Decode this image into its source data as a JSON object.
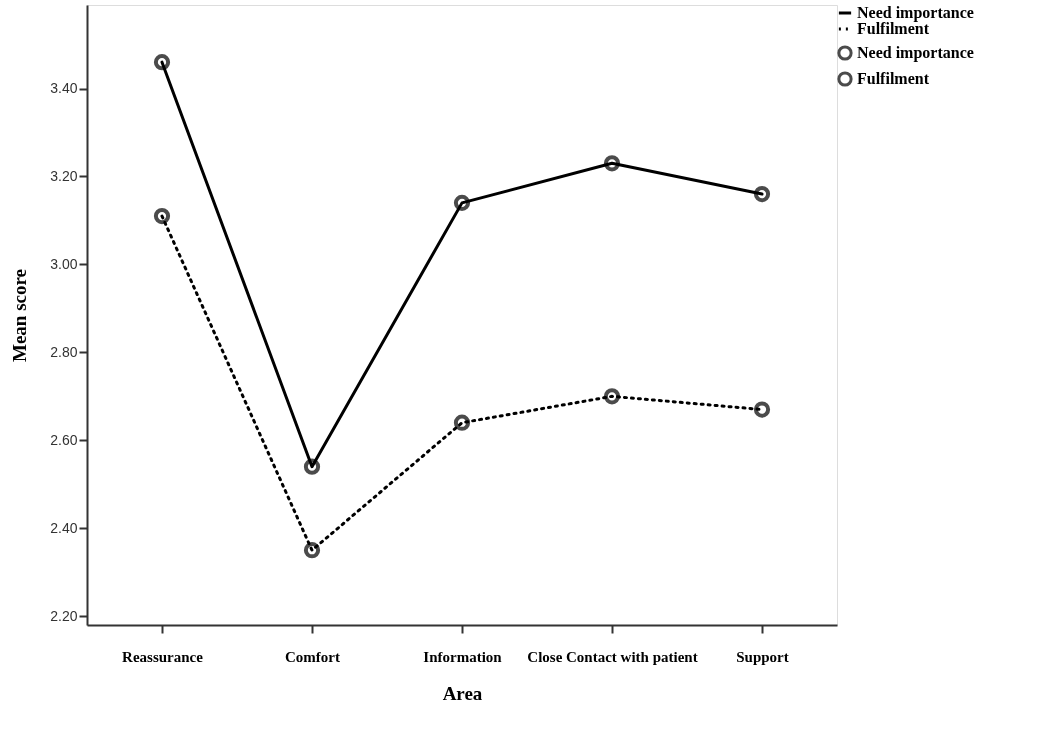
{
  "chart_data": {
    "type": "line",
    "xlabel": "Area",
    "ylabel": "Mean score",
    "categories": [
      "Reassurance",
      "Comfort",
      "Information",
      "Close Contact with patient",
      "Support"
    ],
    "series": [
      {
        "name": "Need importance",
        "color": "#000000",
        "line_style": "solid",
        "values": [
          3.46,
          2.54,
          3.14,
          3.23,
          3.16
        ]
      },
      {
        "name": "Fulfilment",
        "color": "#000000",
        "line_style": "dotted",
        "values": [
          3.11,
          2.35,
          2.64,
          2.7,
          2.67
        ]
      }
    ],
    "ylim": [
      2.18,
      3.59
    ],
    "yticks": [
      {
        "value": 2.2,
        "label": "2.20"
      },
      {
        "value": 2.4,
        "label": "2.40"
      },
      {
        "value": 2.6,
        "label": "2.60"
      },
      {
        "value": 2.8,
        "label": "2.80"
      },
      {
        "value": 3.0,
        "label": "3.00"
      },
      {
        "value": 3.2,
        "label": "3.20"
      },
      {
        "value": 3.4,
        "label": "3.40"
      }
    ],
    "marker": "circle",
    "grid": false,
    "legend": "top right"
  }
}
